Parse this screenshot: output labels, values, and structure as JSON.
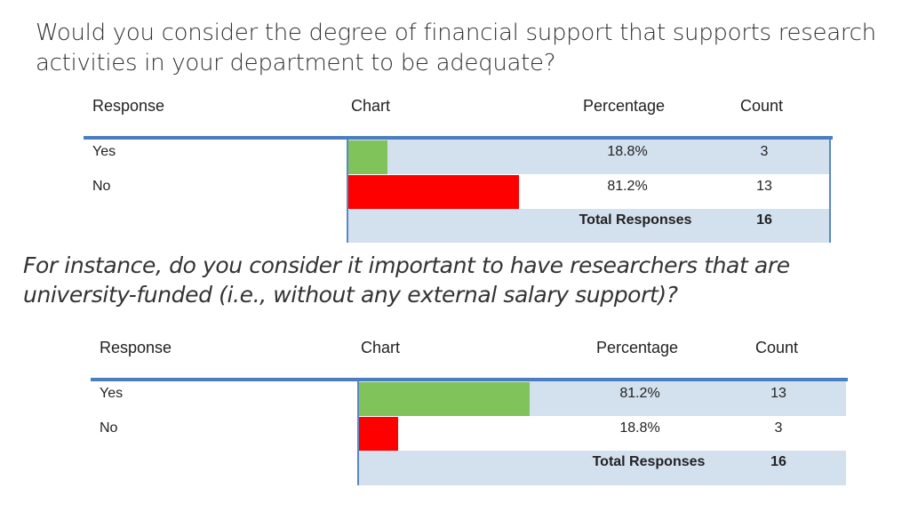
{
  "title": "Would you consider the degree of financial support that supports research activities in your department to be adequate?",
  "subtitle": "For instance, do you consider it important to have researchers that are university-funded (i.e., without any external salary support)?",
  "colors": {
    "yes": "#7fc35a",
    "no": "#ff0000",
    "shade": "#d3e0ee",
    "rule": "#4a7ec0"
  },
  "chart_data": [
    {
      "type": "table",
      "headers": [
        "Response",
        "Chart",
        "Percentage",
        "Count"
      ],
      "rows": [
        {
          "response": "Yes",
          "percentage": "18.8%",
          "count": "3",
          "value": 18.8
        },
        {
          "response": "No",
          "percentage": "81.2%",
          "count": "13",
          "value": 81.2
        }
      ],
      "total_label": "Total Responses",
      "total": "16"
    },
    {
      "type": "table",
      "headers": [
        "Response",
        "Chart",
        "Percentage",
        "Count"
      ],
      "rows": [
        {
          "response": "Yes",
          "percentage": "81.2%",
          "count": "13",
          "value": 81.2
        },
        {
          "response": "No",
          "percentage": "18.8%",
          "count": "3",
          "value": 18.8
        }
      ],
      "total_label": "Total Responses",
      "total": "16"
    }
  ]
}
